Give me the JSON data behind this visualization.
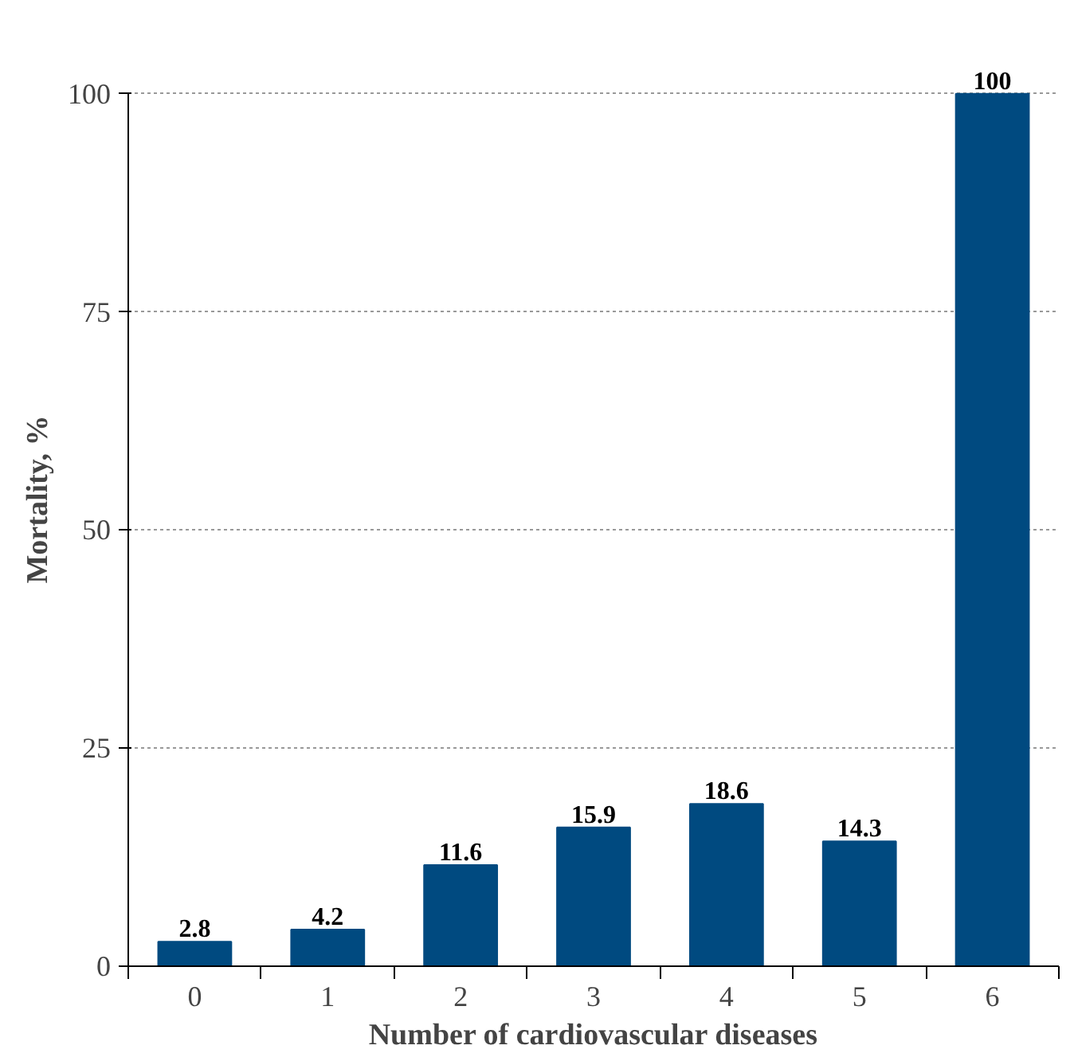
{
  "chart_data": {
    "type": "bar",
    "xlabel": "Number of cardiovascular diseases",
    "ylabel": "Mortality, %",
    "categories": [
      "0",
      "1",
      "2",
      "3",
      "4",
      "5",
      "6"
    ],
    "values": [
      2.8,
      4.2,
      11.6,
      15.9,
      18.6,
      14.3,
      100
    ],
    "color": "#004a80",
    "ylim": [
      0,
      100
    ],
    "yticks": [
      0,
      25,
      50,
      75,
      100
    ],
    "grid": "y",
    "data_labels": true
  }
}
